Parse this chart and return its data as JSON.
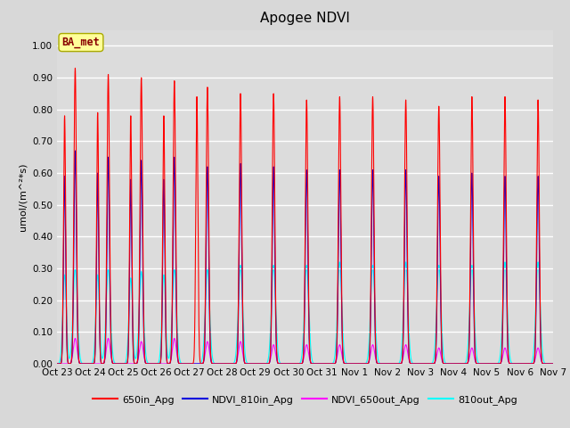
{
  "title": "Apogee NDVI",
  "ylabel": "umol/(m^²*s)",
  "background_color": "#d8d8d8",
  "plot_bg_color": "#dcdcdc",
  "legend_label": "BA_met",
  "legend_bg": "#ffff99",
  "legend_edge": "#aaaa00",
  "series": {
    "650in_Apg": {
      "color": "#ff0000",
      "lw": 0.8
    },
    "NDVI_810in_Apg": {
      "color": "#0000dd",
      "lw": 0.8
    },
    "NDVI_650out_Apg": {
      "color": "#ff00ff",
      "lw": 0.8
    },
    "810out_Apg": {
      "color": "#00ffff",
      "lw": 0.8
    }
  },
  "peaks_650": [
    0.93,
    0.91,
    0.9,
    0.89,
    0.87,
    0.85,
    0.85,
    0.83,
    0.84,
    0.84,
    0.83,
    0.81,
    0.84,
    0.84,
    0.83
  ],
  "peaks_810in": [
    0.67,
    0.65,
    0.64,
    0.65,
    0.62,
    0.63,
    0.62,
    0.61,
    0.61,
    0.61,
    0.61,
    0.59,
    0.6,
    0.59,
    0.59
  ],
  "peaks_650out": [
    0.08,
    0.08,
    0.07,
    0.08,
    0.07,
    0.07,
    0.06,
    0.06,
    0.06,
    0.06,
    0.06,
    0.05,
    0.05,
    0.05,
    0.05
  ],
  "peaks_810out": [
    0.3,
    0.3,
    0.29,
    0.3,
    0.3,
    0.31,
    0.31,
    0.31,
    0.32,
    0.31,
    0.32,
    0.31,
    0.31,
    0.32,
    0.32
  ],
  "peaks2_650": [
    0.78,
    0.79,
    0.78,
    0.78,
    0.84,
    0.0,
    0.0,
    0.0,
    0.0,
    0.0,
    0.0,
    0.0,
    0.0,
    0.0,
    0.0
  ],
  "peaks2_810in": [
    0.59,
    0.6,
    0.58,
    0.58,
    0.0,
    0.0,
    0.0,
    0.0,
    0.0,
    0.0,
    0.0,
    0.0,
    0.0,
    0.0,
    0.0
  ],
  "peaks2_810out": [
    0.28,
    0.28,
    0.27,
    0.28,
    0.0,
    0.0,
    0.0,
    0.0,
    0.0,
    0.0,
    0.0,
    0.0,
    0.0,
    0.0,
    0.0
  ],
  "ylim": [
    0.0,
    1.05
  ],
  "yticks": [
    0.0,
    0.1,
    0.2,
    0.3,
    0.4,
    0.5,
    0.6,
    0.7,
    0.8,
    0.9,
    1.0
  ],
  "num_days": 15,
  "xtick_labels": [
    "Oct 23",
    "Oct 24",
    "Oct 25",
    "Oct 26",
    "Oct 27",
    "Oct 28",
    "Oct 29",
    "Oct 30",
    "Oct 31",
    "Nov 1",
    "Nov 2",
    "Nov 3",
    "Nov 4",
    "Nov 5",
    "Nov 6",
    "Nov 7"
  ],
  "title_fontsize": 11,
  "label_fontsize": 8,
  "tick_fontsize": 7.5
}
